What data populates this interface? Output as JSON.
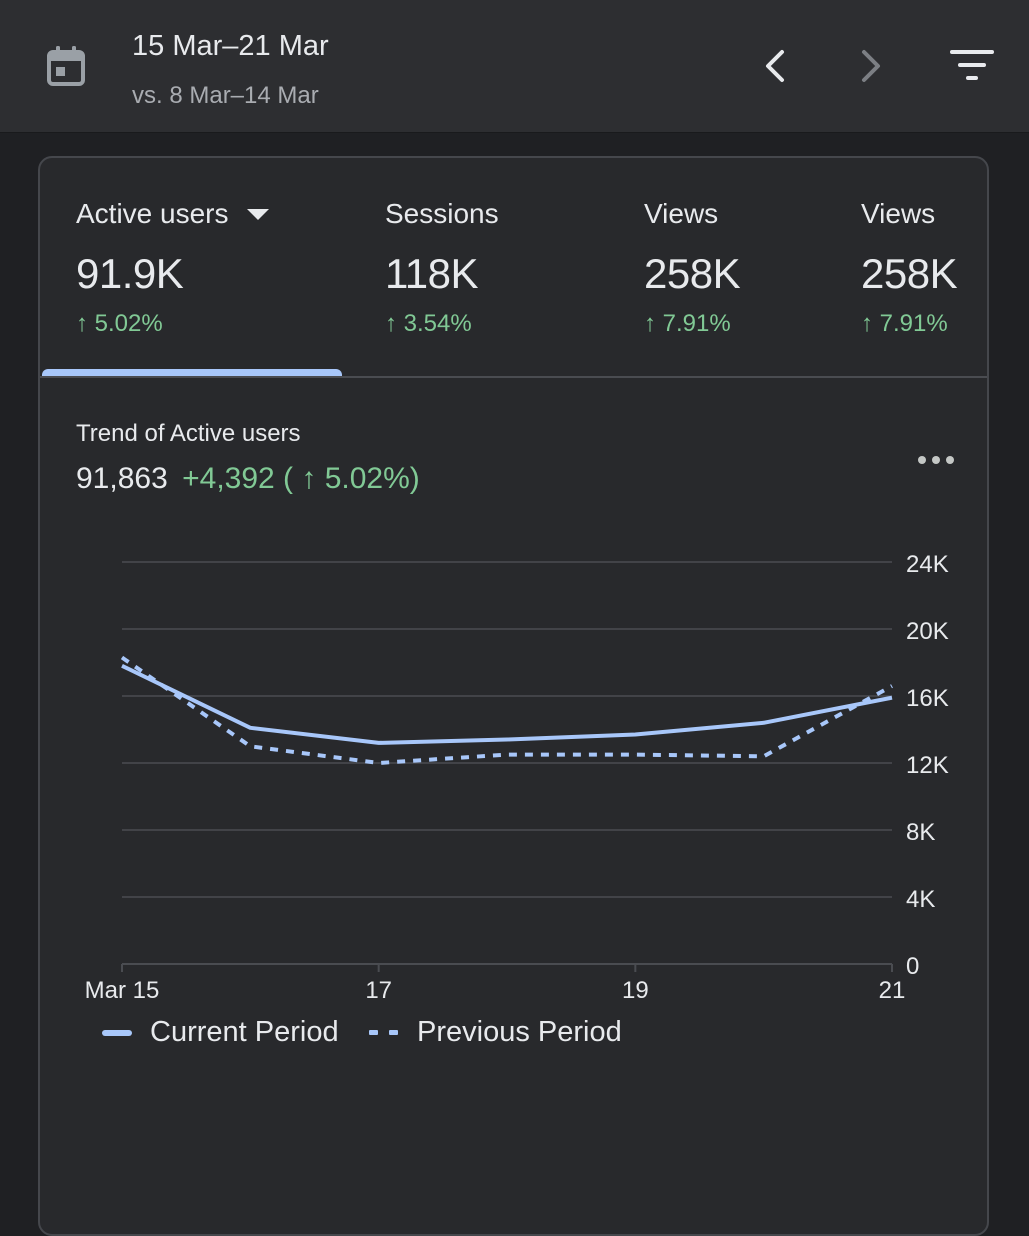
{
  "header": {
    "date_range": "15 Mar–21 Mar",
    "compare_range": "vs. 8 Mar–14 Mar",
    "icons": {
      "calendar": "calendar-icon",
      "previous": "chevron-left-icon",
      "next": "chevron-right-icon",
      "filter": "filter-icon"
    }
  },
  "metrics": [
    {
      "label": "Active users",
      "value": "91.9K",
      "change": "↑ 5.02%"
    },
    {
      "label": "Sessions",
      "value": "118K",
      "change": "↑ 3.54%"
    },
    {
      "label": "Views",
      "value": "258K",
      "change": "↑ 7.91%"
    },
    {
      "label": "Views",
      "value": "258K",
      "change": "↑ 7.91%"
    }
  ],
  "trend": {
    "title": "Trend of Active users",
    "total": "91,863",
    "delta": "+4,392 ( ↑ 5.02%)"
  },
  "colors": {
    "accent": "#a8c7fa",
    "positive": "#81c995",
    "gridline": "#4a4c51",
    "card_bg": "#28292c",
    "header_bg": "#2d2e31"
  },
  "chart_data": {
    "type": "line",
    "title": "Trend of Active users",
    "x": [
      15,
      16,
      17,
      18,
      19,
      20,
      21
    ],
    "x_tick_values": [
      15,
      17,
      19,
      21
    ],
    "x_tick_labels": [
      "Mar 15",
      "17",
      "19",
      "21"
    ],
    "y_ticks": [
      0,
      4000,
      8000,
      12000,
      16000,
      20000,
      24000
    ],
    "y_tick_labels": [
      "0",
      "4K",
      "8K",
      "12K",
      "16K",
      "20K",
      "24K"
    ],
    "ylim": [
      0,
      24000
    ],
    "y_axis_position": "right",
    "grid": true,
    "legend_position": "bottom-left",
    "series": [
      {
        "name": "Current Period",
        "style": "solid",
        "values": [
          17800,
          14100,
          13200,
          13400,
          13700,
          14400,
          15900
        ]
      },
      {
        "name": "Previous Period",
        "style": "dotted",
        "values": [
          18300,
          13000,
          12000,
          12500,
          12500,
          12400,
          16600
        ]
      }
    ]
  }
}
